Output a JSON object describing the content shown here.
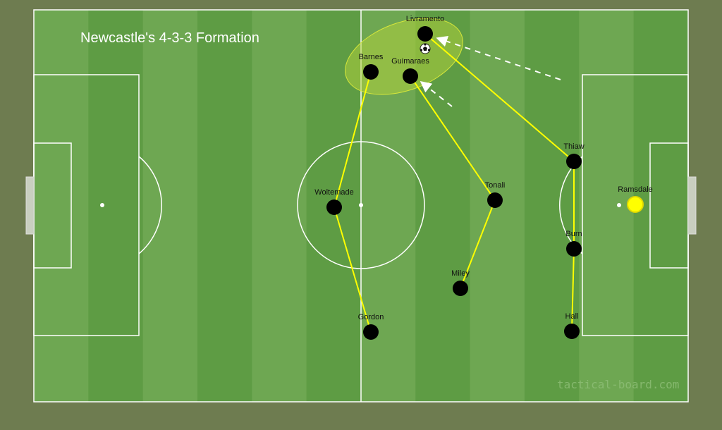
{
  "title": "Newcastle's 4-3-3 Formation",
  "watermark": "tactical-board.com",
  "colors": {
    "background": "#6e7c50",
    "stripe_light": "#6ea752",
    "stripe_dark": "#5e9c44",
    "player": "#000000",
    "goalkeeper": "#ffff00",
    "link_line": "#ffff00",
    "highlight_zone": "#b5d33a"
  },
  "players": [
    {
      "name": "Livramento",
      "role": "outfield"
    },
    {
      "name": "Barnes",
      "role": "outfield"
    },
    {
      "name": "Guimaraes",
      "role": "outfield"
    },
    {
      "name": "Woltemade",
      "role": "outfield"
    },
    {
      "name": "Tonali",
      "role": "outfield"
    },
    {
      "name": "Miley",
      "role": "outfield"
    },
    {
      "name": "Gordon",
      "role": "outfield"
    },
    {
      "name": "Thiaw",
      "role": "outfield"
    },
    {
      "name": "Burn",
      "role": "outfield"
    },
    {
      "name": "Hall",
      "role": "outfield"
    },
    {
      "name": "Ramsdale",
      "role": "goalkeeper"
    }
  ],
  "links": [
    [
      "Barnes",
      "Woltemade"
    ],
    [
      "Woltemade",
      "Gordon"
    ],
    [
      "Guimaraes",
      "Tonali"
    ],
    [
      "Tonali",
      "Miley"
    ],
    [
      "Livramento",
      "Thiaw"
    ],
    [
      "Thiaw",
      "Burn"
    ],
    [
      "Burn",
      "Hall"
    ]
  ],
  "ball_icon": "soccer-ball-icon"
}
